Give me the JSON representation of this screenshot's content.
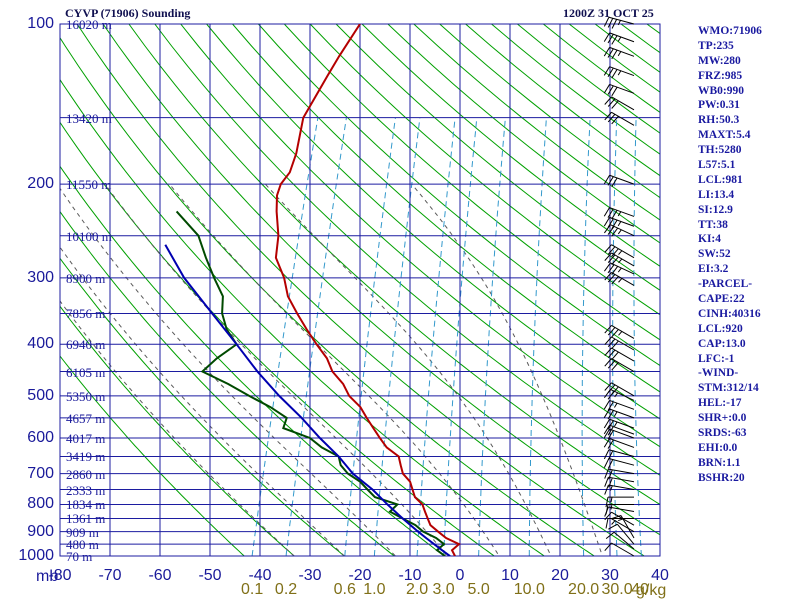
{
  "title": "CYVP (71906) Sounding",
  "valid_time": "1200Z 31 OCT 25",
  "indices": [
    "WMO:71906",
    "TP:235",
    "MW:280",
    "FRZ:985",
    "WB0:990",
    "PW:0.31",
    "RH:50.3",
    "MAXT:5.4",
    "TH:5280",
    "L57:5.1",
    "LCL:981",
    "LI:13.4",
    "SI:12.9",
    "TT:38",
    "KI:4",
    "SW:52",
    "EI:3.2",
    "-PARCEL-",
    "CAPE:22",
    "CINH:40316",
    "LCL:920",
    "CAP:13.0",
    "LFC:-1",
    "-WIND-",
    "STM:312/14",
    "HEL:-17",
    "SHR+:0.0",
    "SRDS:-63",
    "EHI:0.0",
    "BRN:1.1",
    "BSHR:20"
  ],
  "colors": {
    "isobar_grid": "#1c1ca0",
    "isotherm_grid": "#1c1ca0",
    "dry_adiabat": "#00a000",
    "moist_adiabat": "#5a5a5a",
    "mixing_ratio": "#3399cc",
    "temperature": "#b40000",
    "dewpoint": "#004a00",
    "parcel": "#0000b0",
    "wind_barb": "#000000"
  },
  "chart_data": {
    "type": "skew-t",
    "title": "CYVP (71906) Sounding",
    "valid_time": "1200Z 31 OCT 25",
    "pressure_unit": "mb",
    "mixing_ratio_unit": "g/kg",
    "y_scale": "log",
    "ylim": [
      1000,
      100
    ],
    "xlim": [
      -80,
      40
    ],
    "pressure_ticks": [
      "100",
      "200",
      "300",
      "400",
      "500",
      "600",
      "700",
      "800",
      "900",
      "1000"
    ],
    "temperature_ticks": [
      "-80",
      "-70",
      "-60",
      "-50",
      "-40",
      "-30",
      "-20",
      "-10",
      "0",
      "10",
      "20",
      "30",
      "40"
    ],
    "mixing_ratio_ticks": [
      "0.1",
      "0.2",
      "0.6",
      "1.0",
      "2.0",
      "3.0",
      "5.0",
      "10.0",
      "20.0",
      "30.0",
      "40"
    ],
    "height_labels": [
      {
        "p": 1000,
        "label": "70 m"
      },
      {
        "p": 950,
        "label": "480 m"
      },
      {
        "p": 900,
        "label": "909 m"
      },
      {
        "p": 850,
        "label": "1361 m"
      },
      {
        "p": 800,
        "label": "1834 m"
      },
      {
        "p": 750,
        "label": "2333 m"
      },
      {
        "p": 700,
        "label": "2860 m"
      },
      {
        "p": 650,
        "label": "3419 m"
      },
      {
        "p": 600,
        "label": "4017 m"
      },
      {
        "p": 550,
        "label": "4657 m"
      },
      {
        "p": 500,
        "label": "5350 m"
      },
      {
        "p": 450,
        "label": "6105 m"
      },
      {
        "p": 400,
        "label": "6940 m"
      },
      {
        "p": 350,
        "label": "7856 m"
      },
      {
        "p": 300,
        "label": "8900 m"
      },
      {
        "p": 250,
        "label": "10100 m"
      },
      {
        "p": 200,
        "label": "11550 m"
      },
      {
        "p": 150,
        "label": "13420 m"
      },
      {
        "p": 100,
        "label": "16020 m"
      }
    ],
    "series": [
      {
        "kind": "temperature",
        "points": [
          [
            1000,
            -1
          ],
          [
            975,
            -2
          ],
          [
            950,
            -1
          ],
          [
            925,
            -4
          ],
          [
            900,
            -6
          ],
          [
            875,
            -8
          ],
          [
            850,
            -9
          ],
          [
            825,
            -10
          ],
          [
            800,
            -11
          ],
          [
            775,
            -13
          ],
          [
            750,
            -14
          ],
          [
            725,
            -15
          ],
          [
            700,
            -17
          ],
          [
            675,
            -18
          ],
          [
            650,
            -19
          ],
          [
            625,
            -22
          ],
          [
            600,
            -24
          ],
          [
            575,
            -26
          ],
          [
            550,
            -28
          ],
          [
            525,
            -30
          ],
          [
            500,
            -33
          ],
          [
            475,
            -35
          ],
          [
            450,
            -38
          ],
          [
            425,
            -40
          ],
          [
            400,
            -43
          ],
          [
            375,
            -46
          ],
          [
            350,
            -49
          ],
          [
            325,
            -52
          ],
          [
            300,
            -54
          ],
          [
            275,
            -57
          ],
          [
            250,
            -58
          ],
          [
            225,
            -60
          ],
          [
            210,
            -61
          ],
          [
            200,
            -61
          ],
          [
            190,
            -60
          ],
          [
            175,
            -60
          ],
          [
            150,
            -61
          ],
          [
            125,
            -59
          ],
          [
            115,
            -58
          ],
          [
            100,
            -56
          ]
        ]
      },
      {
        "kind": "dewpoint",
        "points": [
          [
            1000,
            -3
          ],
          [
            975,
            -5
          ],
          [
            950,
            -4
          ],
          [
            925,
            -6
          ],
          [
            900,
            -9
          ],
          [
            875,
            -11
          ],
          [
            850,
            -14
          ],
          [
            825,
            -17
          ],
          [
            800,
            -16
          ],
          [
            775,
            -21
          ],
          [
            750,
            -23
          ],
          [
            725,
            -25
          ],
          [
            700,
            -28
          ],
          [
            675,
            -30
          ],
          [
            650,
            -31
          ],
          [
            625,
            -35
          ],
          [
            600,
            -38
          ],
          [
            575,
            -44
          ],
          [
            550,
            -44
          ],
          [
            525,
            -48
          ],
          [
            500,
            -53
          ],
          [
            475,
            -58
          ],
          [
            450,
            -64
          ],
          [
            425,
            -62
          ],
          [
            400,
            -59
          ],
          [
            375,
            -62
          ],
          [
            350,
            -64
          ],
          [
            325,
            -65
          ],
          [
            300,
            -68
          ],
          [
            275,
            -71
          ],
          [
            250,
            -74
          ],
          [
            225,
            -80
          ]
        ]
      },
      {
        "kind": "parcel",
        "points": [
          [
            1000,
            -2
          ],
          [
            975,
            -4
          ],
          [
            950,
            -6
          ],
          [
            925,
            -8
          ],
          [
            900,
            -10
          ],
          [
            850,
            -14
          ],
          [
            800,
            -18
          ],
          [
            750,
            -22
          ],
          [
            700,
            -27
          ],
          [
            650,
            -31
          ],
          [
            600,
            -36
          ],
          [
            550,
            -41
          ],
          [
            500,
            -47
          ],
          [
            450,
            -53
          ],
          [
            400,
            -59
          ],
          [
            350,
            -66
          ],
          [
            300,
            -74
          ],
          [
            260,
            -80
          ]
        ]
      }
    ],
    "wind_barbs": [
      {
        "p": 1000,
        "dir": 300,
        "spd": 10
      },
      {
        "p": 970,
        "dir": 310,
        "spd": 10
      },
      {
        "p": 950,
        "dir": 320,
        "spd": 10
      },
      {
        "p": 925,
        "dir": 330,
        "spd": 15
      },
      {
        "p": 900,
        "dir": 300,
        "spd": 5
      },
      {
        "p": 875,
        "dir": 300,
        "spd": 10
      },
      {
        "p": 850,
        "dir": 270,
        "spd": 10
      },
      {
        "p": 825,
        "dir": 280,
        "spd": 10
      },
      {
        "p": 800,
        "dir": 270,
        "spd": 15
      },
      {
        "p": 775,
        "dir": 270,
        "spd": 15
      },
      {
        "p": 750,
        "dir": 280,
        "spd": 15
      },
      {
        "p": 725,
        "dir": 280,
        "spd": 20
      },
      {
        "p": 700,
        "dir": 280,
        "spd": 20
      },
      {
        "p": 675,
        "dir": 285,
        "spd": 20
      },
      {
        "p": 650,
        "dir": 285,
        "spd": 20
      },
      {
        "p": 625,
        "dir": 290,
        "spd": 20
      },
      {
        "p": 600,
        "dir": 290,
        "spd": 20
      },
      {
        "p": 590,
        "dir": 290,
        "spd": 20
      },
      {
        "p": 575,
        "dir": 290,
        "spd": 25
      },
      {
        "p": 550,
        "dir": 290,
        "spd": 25
      },
      {
        "p": 530,
        "dir": 290,
        "spd": 25
      },
      {
        "p": 510,
        "dir": 295,
        "spd": 25
      },
      {
        "p": 500,
        "dir": 300,
        "spd": 30
      },
      {
        "p": 450,
        "dir": 300,
        "spd": 30
      },
      {
        "p": 430,
        "dir": 300,
        "spd": 30
      },
      {
        "p": 410,
        "dir": 300,
        "spd": 30
      },
      {
        "p": 390,
        "dir": 300,
        "spd": 35
      },
      {
        "p": 310,
        "dir": 300,
        "spd": 35
      },
      {
        "p": 295,
        "dir": 295,
        "spd": 35
      },
      {
        "p": 285,
        "dir": 300,
        "spd": 35
      },
      {
        "p": 275,
        "dir": 300,
        "spd": 35
      },
      {
        "p": 250,
        "dir": 295,
        "spd": 35
      },
      {
        "p": 240,
        "dir": 290,
        "spd": 35
      },
      {
        "p": 230,
        "dir": 290,
        "spd": 35
      },
      {
        "p": 200,
        "dir": 290,
        "spd": 30
      },
      {
        "p": 155,
        "dir": 300,
        "spd": 30
      },
      {
        "p": 145,
        "dir": 300,
        "spd": 30
      },
      {
        "p": 135,
        "dir": 290,
        "spd": 30
      },
      {
        "p": 125,
        "dir": 290,
        "spd": 35
      },
      {
        "p": 115,
        "dir": 290,
        "spd": 35
      },
      {
        "p": 108,
        "dir": 290,
        "spd": 35
      },
      {
        "p": 100,
        "dir": 285,
        "spd": 35
      }
    ]
  }
}
